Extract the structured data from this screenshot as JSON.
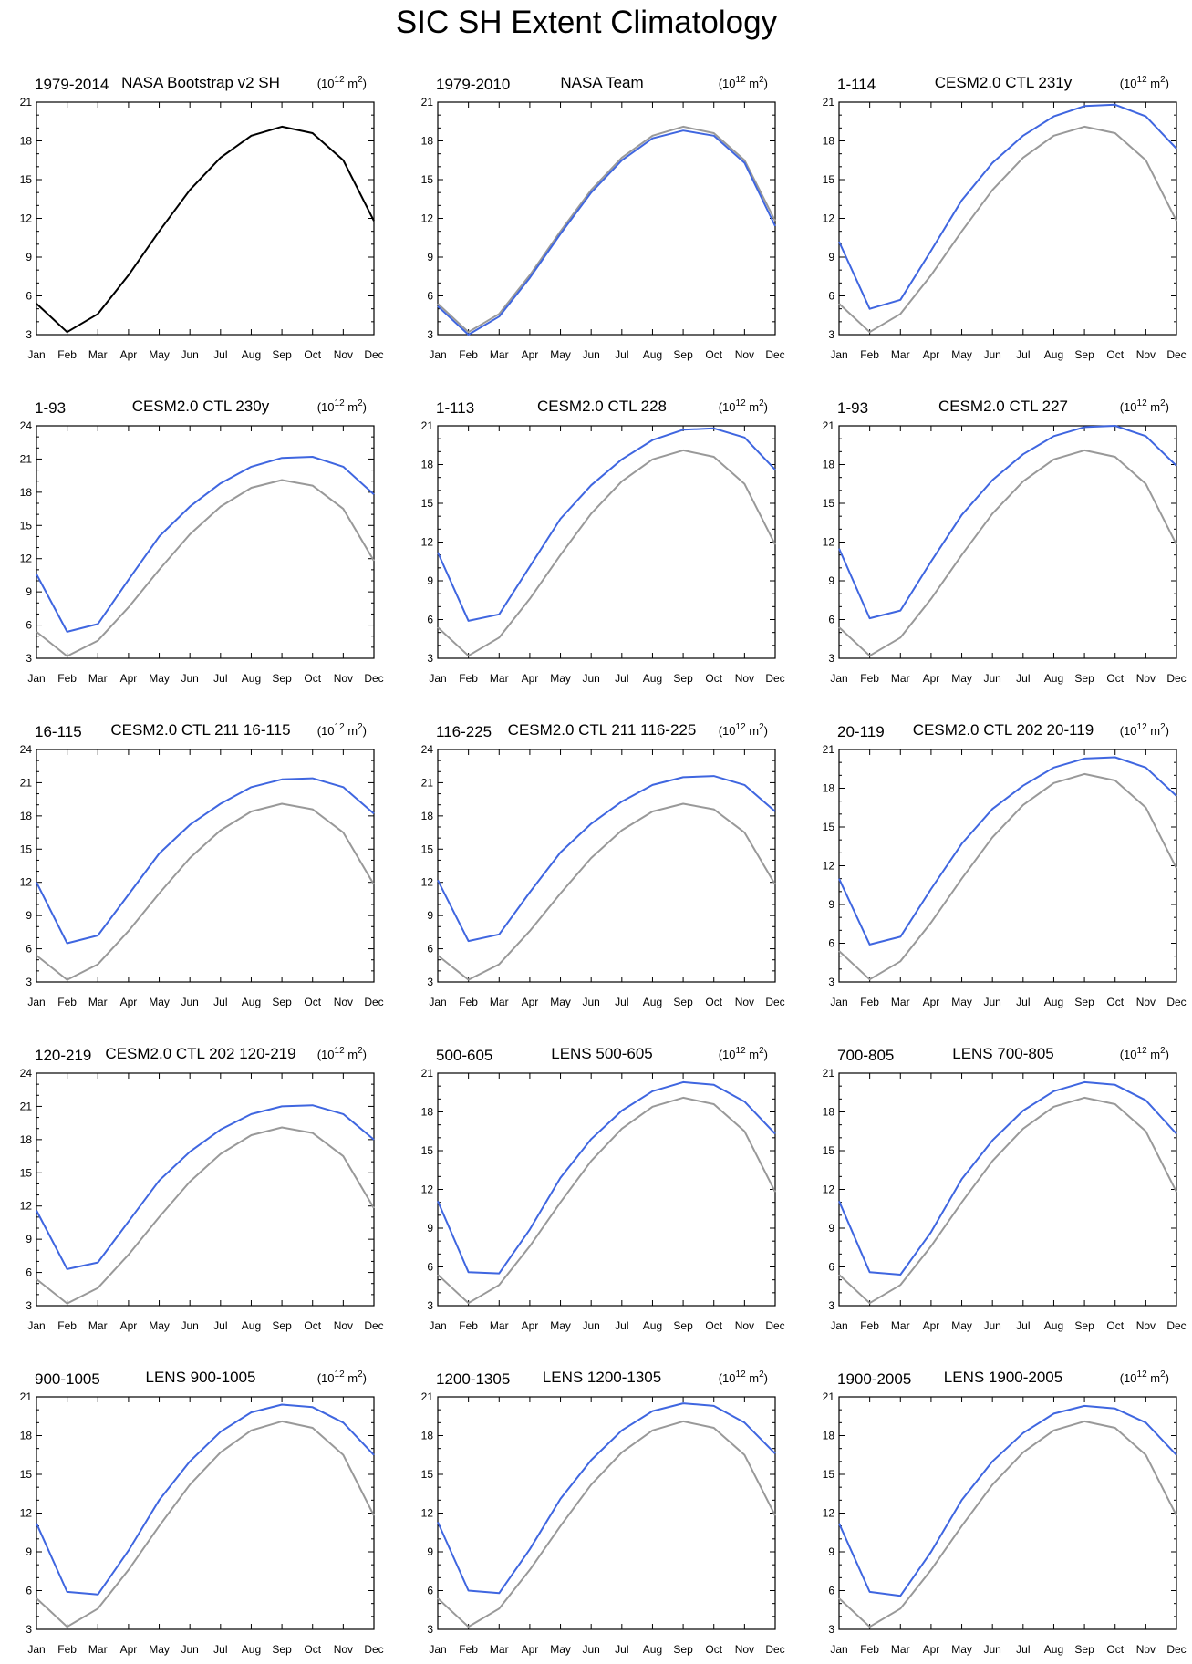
{
  "title": "SIC SH Extent Climatology",
  "units": {
    "base": "(10",
    "exp": "12",
    "tail": " m",
    "sq": "2",
    "close": ")"
  },
  "months": [
    "Jan",
    "Feb",
    "Mar",
    "Apr",
    "May",
    "Jun",
    "Jul",
    "Aug",
    "Sep",
    "Oct",
    "Nov",
    "Dec"
  ],
  "colors": {
    "obs": "#000000",
    "reference": "#999999",
    "model": "#3f66e0"
  },
  "chart_data": [
    {
      "type": "line",
      "left_label": "1979-2014",
      "title": "NASA Bootstrap v2 SH",
      "ylim": [
        3,
        21
      ],
      "yticks": [
        3,
        6,
        9,
        12,
        15,
        18,
        21
      ],
      "series": [
        {
          "name": "NASA Bootstrap v2 SH",
          "role": "obs",
          "values": [
            5.4,
            3.2,
            4.6,
            7.6,
            11.0,
            14.2,
            16.7,
            18.4,
            19.1,
            18.6,
            16.5,
            11.8
          ]
        }
      ]
    },
    {
      "type": "line",
      "left_label": "1979-2010",
      "title": "NASA Team",
      "ylim": [
        3,
        21
      ],
      "yticks": [
        3,
        6,
        9,
        12,
        15,
        18,
        21
      ],
      "series": [
        {
          "name": "reference",
          "role": "reference",
          "values": [
            5.4,
            3.2,
            4.6,
            7.6,
            11.0,
            14.2,
            16.7,
            18.4,
            19.1,
            18.6,
            16.5,
            11.8
          ]
        },
        {
          "name": "NASA Team",
          "role": "model",
          "values": [
            5.2,
            3.0,
            4.4,
            7.4,
            10.8,
            14.0,
            16.5,
            18.2,
            18.8,
            18.4,
            16.3,
            11.4
          ]
        }
      ]
    },
    {
      "type": "line",
      "left_label": "1-114",
      "title": "CESM2.0 CTL 231y",
      "ylim": [
        3,
        21
      ],
      "yticks": [
        3,
        6,
        9,
        12,
        15,
        18,
        21
      ],
      "series": [
        {
          "name": "reference",
          "role": "reference",
          "values": [
            5.4,
            3.2,
            4.6,
            7.6,
            11.0,
            14.2,
            16.7,
            18.4,
            19.1,
            18.6,
            16.5,
            11.8
          ]
        },
        {
          "name": "CESM2.0 CTL 231y",
          "role": "model",
          "values": [
            10.2,
            5.0,
            5.7,
            9.5,
            13.4,
            16.3,
            18.4,
            19.9,
            20.7,
            20.8,
            19.9,
            17.4
          ]
        }
      ]
    },
    {
      "type": "line",
      "left_label": "1-93",
      "title": "CESM2.0 CTL 230y",
      "ylim": [
        3,
        24
      ],
      "yticks": [
        3,
        6,
        9,
        12,
        15,
        18,
        21,
        24
      ],
      "series": [
        {
          "name": "reference",
          "role": "reference",
          "values": [
            5.4,
            3.2,
            4.6,
            7.6,
            11.0,
            14.2,
            16.7,
            18.4,
            19.1,
            18.6,
            16.5,
            11.8
          ]
        },
        {
          "name": "CESM2.0 CTL 230y",
          "role": "model",
          "values": [
            10.6,
            5.4,
            6.1,
            10.1,
            14.0,
            16.7,
            18.8,
            20.3,
            21.1,
            21.2,
            20.3,
            17.8
          ]
        }
      ]
    },
    {
      "type": "line",
      "left_label": "1-113",
      "title": "CESM2.0 CTL 228",
      "ylim": [
        3,
        21
      ],
      "yticks": [
        3,
        6,
        9,
        12,
        15,
        18,
        21
      ],
      "series": [
        {
          "name": "reference",
          "role": "reference",
          "values": [
            5.4,
            3.2,
            4.6,
            7.6,
            11.0,
            14.2,
            16.7,
            18.4,
            19.1,
            18.6,
            16.5,
            11.8
          ]
        },
        {
          "name": "CESM2.0 CTL 228",
          "role": "model",
          "values": [
            11.2,
            5.9,
            6.4,
            10.1,
            13.8,
            16.4,
            18.4,
            19.9,
            20.7,
            20.8,
            20.1,
            17.6
          ]
        }
      ]
    },
    {
      "type": "line",
      "left_label": "1-93",
      "title": "CESM2.0 CTL 227",
      "ylim": [
        3,
        21
      ],
      "yticks": [
        3,
        6,
        9,
        12,
        15,
        18,
        21
      ],
      "series": [
        {
          "name": "reference",
          "role": "reference",
          "values": [
            5.4,
            3.2,
            4.6,
            7.6,
            11.0,
            14.2,
            16.7,
            18.4,
            19.1,
            18.6,
            16.5,
            11.8
          ]
        },
        {
          "name": "CESM2.0 CTL 227",
          "role": "model",
          "values": [
            11.5,
            6.1,
            6.7,
            10.5,
            14.1,
            16.8,
            18.8,
            20.2,
            20.9,
            21.0,
            20.2,
            17.9
          ]
        }
      ]
    },
    {
      "type": "line",
      "left_label": "16-115",
      "title": "CESM2.0 CTL 211 16-115",
      "ylim": [
        3,
        24
      ],
      "yticks": [
        3,
        6,
        9,
        12,
        15,
        18,
        21,
        24
      ],
      "series": [
        {
          "name": "reference",
          "role": "reference",
          "values": [
            5.4,
            3.2,
            4.6,
            7.6,
            11.0,
            14.2,
            16.7,
            18.4,
            19.1,
            18.6,
            16.5,
            11.8
          ]
        },
        {
          "name": "CESM2.0 CTL 211 16-115",
          "role": "model",
          "values": [
            12.0,
            6.5,
            7.2,
            10.9,
            14.6,
            17.2,
            19.1,
            20.6,
            21.3,
            21.4,
            20.6,
            18.2
          ]
        }
      ]
    },
    {
      "type": "line",
      "left_label": "116-225",
      "title": "CESM2.0 CTL 211 116-225",
      "ylim": [
        3,
        24
      ],
      "yticks": [
        3,
        6,
        9,
        12,
        15,
        18,
        21,
        24
      ],
      "series": [
        {
          "name": "reference",
          "role": "reference",
          "values": [
            5.4,
            3.2,
            4.6,
            7.6,
            11.0,
            14.2,
            16.7,
            18.4,
            19.1,
            18.6,
            16.5,
            11.8
          ]
        },
        {
          "name": "CESM2.0 CTL 211 116-225",
          "role": "model",
          "values": [
            12.2,
            6.7,
            7.3,
            11.1,
            14.7,
            17.3,
            19.3,
            20.8,
            21.5,
            21.6,
            20.8,
            18.4
          ]
        }
      ]
    },
    {
      "type": "line",
      "left_label": "20-119",
      "title": "CESM2.0 CTL 202 20-119",
      "ylim": [
        3,
        21
      ],
      "yticks": [
        3,
        6,
        9,
        12,
        15,
        18,
        21
      ],
      "series": [
        {
          "name": "reference",
          "role": "reference",
          "values": [
            5.4,
            3.2,
            4.6,
            7.6,
            11.0,
            14.2,
            16.7,
            18.4,
            19.1,
            18.6,
            16.5,
            11.8
          ]
        },
        {
          "name": "CESM2.0 CTL 202 20-119",
          "role": "model",
          "values": [
            11.0,
            5.9,
            6.5,
            10.2,
            13.7,
            16.4,
            18.2,
            19.6,
            20.3,
            20.4,
            19.6,
            17.4
          ]
        }
      ]
    },
    {
      "type": "line",
      "left_label": "120-219",
      "title": "CESM2.0 CTL 202 120-219",
      "ylim": [
        3,
        24
      ],
      "yticks": [
        3,
        6,
        9,
        12,
        15,
        18,
        21,
        24
      ],
      "series": [
        {
          "name": "reference",
          "role": "reference",
          "values": [
            5.4,
            3.2,
            4.6,
            7.6,
            11.0,
            14.2,
            16.7,
            18.4,
            19.1,
            18.6,
            16.5,
            11.8
          ]
        },
        {
          "name": "CESM2.0 CTL 202 120-219",
          "role": "model",
          "values": [
            11.6,
            6.3,
            6.9,
            10.6,
            14.3,
            16.9,
            18.9,
            20.3,
            21.0,
            21.1,
            20.3,
            18.0
          ]
        }
      ]
    },
    {
      "type": "line",
      "left_label": "500-605",
      "title": "LENS 500-605",
      "ylim": [
        3,
        21
      ],
      "yticks": [
        3,
        6,
        9,
        12,
        15,
        18,
        21
      ],
      "series": [
        {
          "name": "reference",
          "role": "reference",
          "values": [
            5.4,
            3.2,
            4.6,
            7.6,
            11.0,
            14.2,
            16.7,
            18.4,
            19.1,
            18.6,
            16.5,
            11.8
          ]
        },
        {
          "name": "LENS 500-605",
          "role": "model",
          "values": [
            11.1,
            5.6,
            5.5,
            8.9,
            12.9,
            15.9,
            18.1,
            19.6,
            20.3,
            20.1,
            18.8,
            16.3
          ]
        }
      ]
    },
    {
      "type": "line",
      "left_label": "700-805",
      "title": "LENS 700-805",
      "ylim": [
        3,
        21
      ],
      "yticks": [
        3,
        6,
        9,
        12,
        15,
        18,
        21
      ],
      "series": [
        {
          "name": "reference",
          "role": "reference",
          "values": [
            5.4,
            3.2,
            4.6,
            7.6,
            11.0,
            14.2,
            16.7,
            18.4,
            19.1,
            18.6,
            16.5,
            11.8
          ]
        },
        {
          "name": "LENS 700-805",
          "role": "model",
          "values": [
            11.1,
            5.6,
            5.4,
            8.7,
            12.8,
            15.8,
            18.1,
            19.6,
            20.3,
            20.1,
            18.9,
            16.3
          ]
        }
      ]
    },
    {
      "type": "line",
      "left_label": "900-1005",
      "title": "LENS 900-1005",
      "ylim": [
        3,
        21
      ],
      "yticks": [
        3,
        6,
        9,
        12,
        15,
        18,
        21
      ],
      "series": [
        {
          "name": "reference",
          "role": "reference",
          "values": [
            5.4,
            3.2,
            4.6,
            7.6,
            11.0,
            14.2,
            16.7,
            18.4,
            19.1,
            18.6,
            16.5,
            11.8
          ]
        },
        {
          "name": "LENS 900-1005",
          "role": "model",
          "values": [
            11.2,
            5.9,
            5.7,
            9.1,
            13.0,
            16.0,
            18.3,
            19.8,
            20.4,
            20.2,
            19.0,
            16.5
          ]
        }
      ]
    },
    {
      "type": "line",
      "left_label": "1200-1305",
      "title": "LENS 1200-1305",
      "ylim": [
        3,
        21
      ],
      "yticks": [
        3,
        6,
        9,
        12,
        15,
        18,
        21
      ],
      "series": [
        {
          "name": "reference",
          "role": "reference",
          "values": [
            5.4,
            3.2,
            4.6,
            7.6,
            11.0,
            14.2,
            16.7,
            18.4,
            19.1,
            18.6,
            16.5,
            11.8
          ]
        },
        {
          "name": "LENS 1200-1305",
          "role": "model",
          "values": [
            11.3,
            6.0,
            5.8,
            9.2,
            13.1,
            16.1,
            18.4,
            19.9,
            20.5,
            20.3,
            19.0,
            16.6
          ]
        }
      ]
    },
    {
      "type": "line",
      "left_label": "1900-2005",
      "title": "LENS 1900-2005",
      "ylim": [
        3,
        21
      ],
      "yticks": [
        3,
        6,
        9,
        12,
        15,
        18,
        21
      ],
      "series": [
        {
          "name": "reference",
          "role": "reference",
          "values": [
            5.4,
            3.2,
            4.6,
            7.6,
            11.0,
            14.2,
            16.7,
            18.4,
            19.1,
            18.6,
            16.5,
            11.8
          ]
        },
        {
          "name": "LENS 1900-2005",
          "role": "model",
          "values": [
            11.2,
            5.9,
            5.6,
            9.0,
            13.0,
            16.0,
            18.2,
            19.7,
            20.3,
            20.1,
            19.0,
            16.5
          ]
        }
      ]
    }
  ]
}
